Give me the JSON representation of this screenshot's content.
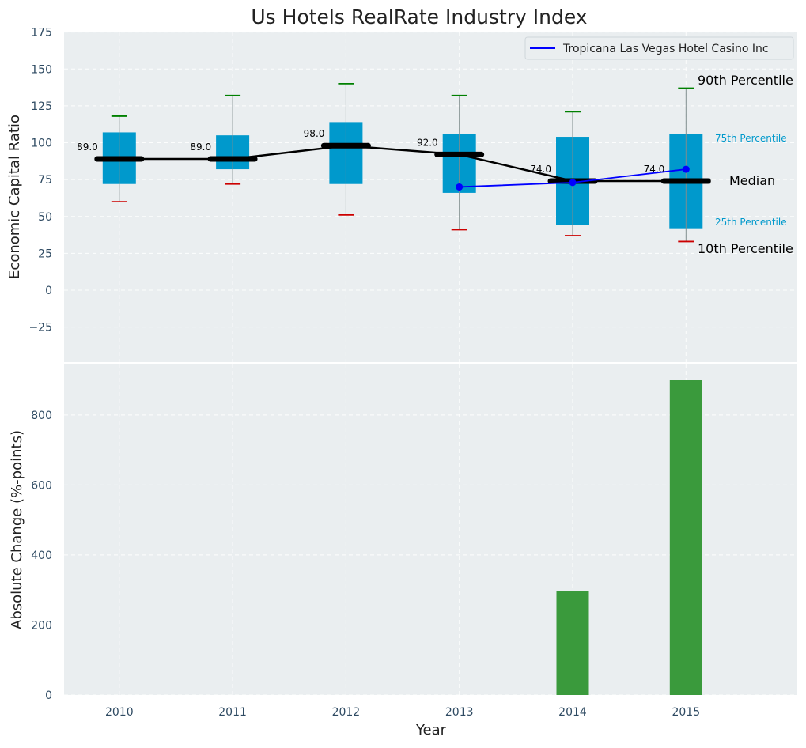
{
  "chart_data": [
    {
      "type": "boxplot",
      "title": "Us Hotels RealRate Industry Index",
      "ylabel": "Economic Capital Ratio",
      "xlabel": "",
      "ylim": [
        -50,
        175
      ],
      "yticks": [
        -25,
        0,
        25,
        50,
        75,
        100,
        125,
        150,
        175
      ],
      "ytick_labels": [
        "−25",
        "0",
        "25",
        "50",
        "75",
        "100",
        "125",
        "150",
        "175"
      ],
      "categories": [
        "2010",
        "2011",
        "2012",
        "2013",
        "2014",
        "2015"
      ],
      "percentiles": {
        "p10": [
          60,
          72,
          51,
          41,
          37,
          33
        ],
        "p25": [
          72,
          82,
          72,
          66,
          44,
          42
        ],
        "median": [
          89,
          89,
          98,
          92,
          74,
          74
        ],
        "p75": [
          107,
          105,
          114,
          106,
          104,
          106
        ],
        "p90": [
          118,
          132,
          140,
          132,
          121,
          137
        ]
      },
      "median_labels": [
        "89.0",
        "89.0",
        "98.0",
        "92.0",
        "74.0",
        "74.0"
      ],
      "company_series": {
        "name": "Tropicana Las Vegas Hotel Casino Inc",
        "categories": [
          "2013",
          "2014",
          "2015"
        ],
        "values": [
          70,
          73,
          82
        ]
      },
      "annotations": {
        "p90": "90th Percentile",
        "p75": "75th Percentile",
        "median": "Median",
        "p25": "25th Percentile",
        "p10": "10th Percentile"
      },
      "legend": "top-right",
      "grid": true,
      "colors": {
        "box": "#0099cc",
        "median": "#000000",
        "company": "#0000ff",
        "whisker_top": "#008000",
        "whisker_bottom": "#cc0000",
        "background": "#eaeef0"
      }
    },
    {
      "type": "bar",
      "title": "",
      "ylabel": "Absolute Change (%-points)",
      "xlabel": "Year",
      "ylim": [
        0,
        950
      ],
      "yticks": [
        0,
        200,
        400,
        600,
        800
      ],
      "ytick_labels": [
        "0",
        "200",
        "400",
        "600",
        "800"
      ],
      "categories": [
        "2010",
        "2011",
        "2012",
        "2013",
        "2014",
        "2015"
      ],
      "values": [
        0,
        0,
        0,
        0,
        298,
        900
      ],
      "grid": true,
      "colors": {
        "bar": "#3a9a3c"
      }
    }
  ]
}
